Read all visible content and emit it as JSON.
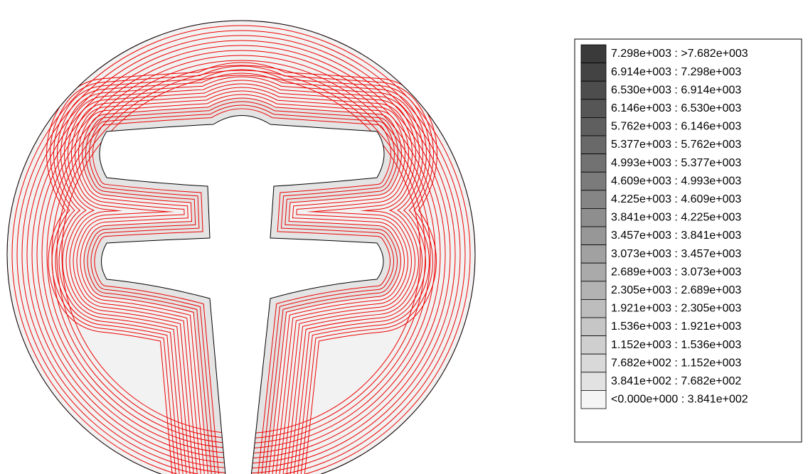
{
  "legend": {
    "entries": [
      {
        "label": "7.298e+003 : >7.682e+003",
        "color": "#3a3a3a"
      },
      {
        "label": "6.914e+003 : 7.298e+003",
        "color": "#434343"
      },
      {
        "label": "6.530e+003 : 6.914e+003",
        "color": "#4d4d4d"
      },
      {
        "label": "6.146e+003 : 6.530e+003",
        "color": "#565656"
      },
      {
        "label": "5.762e+003 : 6.146e+003",
        "color": "#5f5f5f"
      },
      {
        "label": "5.377e+003 : 5.762e+003",
        "color": "#696969"
      },
      {
        "label": "4.993e+003 : 5.377e+003",
        "color": "#727272"
      },
      {
        "label": "4.609e+003 : 4.993e+003",
        "color": "#7b7b7b"
      },
      {
        "label": "4.225e+003 : 4.609e+003",
        "color": "#858585"
      },
      {
        "label": "3.841e+003 : 4.225e+003",
        "color": "#8e8e8e"
      },
      {
        "label": "3.457e+003 : 3.841e+003",
        "color": "#979797"
      },
      {
        "label": "3.073e+003 : 3.457e+003",
        "color": "#a1a1a1"
      },
      {
        "label": "2.689e+003 : 3.073e+003",
        "color": "#aaaaaa"
      },
      {
        "label": "2.305e+003 : 2.689e+003",
        "color": "#b3b3b3"
      },
      {
        "label": "1.921e+003 : 2.305e+003",
        "color": "#bdbdbd"
      },
      {
        "label": "1.536e+003 : 1.921e+003",
        "color": "#c6c6c6"
      },
      {
        "label": "1.152e+003 : 1.536e+003",
        "color": "#cfcfcf"
      },
      {
        "label": "7.682e+002 : 1.152e+003",
        "color": "#d9d9d9"
      },
      {
        "label": "3.841e+002 : 7.682e+002",
        "color": "#e2e2e2"
      },
      {
        "label": "<0.000e+000 : 3.841e+002",
        "color": "#f5f5f5"
      }
    ]
  }
}
